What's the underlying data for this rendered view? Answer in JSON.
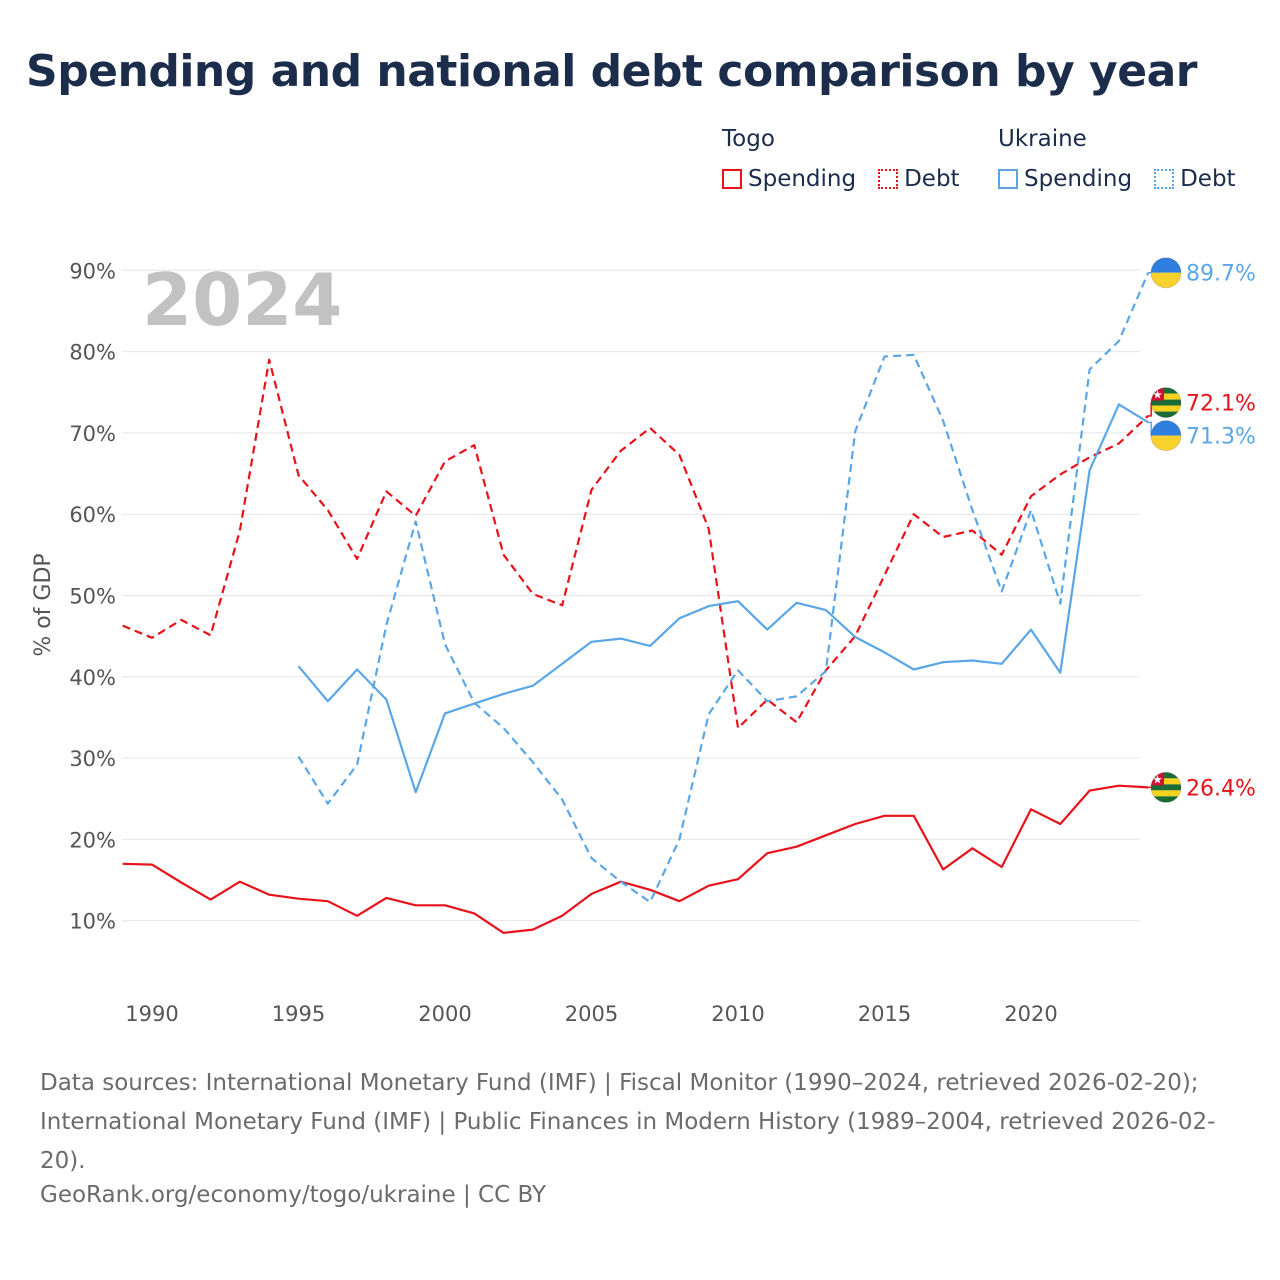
{
  "title": "Spending and national debt comparison by year",
  "legend": {
    "groups": [
      {
        "name": "Togo",
        "color": "#e8121a",
        "items": [
          {
            "label": "Spending",
            "style": "solid"
          },
          {
            "label": "Debt",
            "style": "dotted"
          }
        ]
      },
      {
        "name": "Ukraine",
        "color": "#5aa6e6",
        "items": [
          {
            "label": "Spending",
            "style": "solid"
          },
          {
            "label": "Debt",
            "style": "dotted"
          }
        ]
      }
    ]
  },
  "chart_data": {
    "type": "line",
    "year_label": "2024",
    "ylabel": "% of GDP",
    "xlim": [
      1989,
      2024
    ],
    "ylim": [
      3,
      95
    ],
    "x_ticks": [
      1990,
      1995,
      2000,
      2005,
      2010,
      2015,
      2020
    ],
    "y_ticks": [
      10,
      20,
      30,
      40,
      50,
      60,
      70,
      80,
      90
    ],
    "y_tick_labels": [
      "10%",
      "20%",
      "30%",
      "40%",
      "50%",
      "60%",
      "70%",
      "80%",
      "90%"
    ],
    "grid": true,
    "series": [
      {
        "name": "Togo Spending",
        "country": "Togo",
        "flag": "togo",
        "color": "#e8121a",
        "dash": "solid",
        "end_label": "26.4%",
        "points": [
          [
            1989,
            17.0
          ],
          [
            1990,
            16.9
          ],
          [
            1991,
            14.7
          ],
          [
            1992,
            12.6
          ],
          [
            1993,
            14.8
          ],
          [
            1994,
            13.2
          ],
          [
            1995,
            12.7
          ],
          [
            1996,
            12.4
          ],
          [
            1997,
            10.6
          ],
          [
            1998,
            12.8
          ],
          [
            1999,
            11.9
          ],
          [
            2000,
            11.9
          ],
          [
            2001,
            10.9
          ],
          [
            2002,
            8.5
          ],
          [
            2003,
            8.9
          ],
          [
            2004,
            10.6
          ],
          [
            2005,
            13.3
          ],
          [
            2006,
            14.8
          ],
          [
            2007,
            13.8
          ],
          [
            2008,
            12.4
          ],
          [
            2009,
            14.3
          ],
          [
            2010,
            15.1
          ],
          [
            2011,
            18.3
          ],
          [
            2012,
            19.1
          ],
          [
            2013,
            20.5
          ],
          [
            2014,
            21.9
          ],
          [
            2015,
            22.9
          ],
          [
            2016,
            22.9
          ],
          [
            2017,
            16.3
          ],
          [
            2018,
            18.9
          ],
          [
            2019,
            16.6
          ],
          [
            2020,
            23.7
          ],
          [
            2021,
            21.9
          ],
          [
            2022,
            26.0
          ],
          [
            2023,
            26.6
          ],
          [
            2024,
            26.4
          ]
        ]
      },
      {
        "name": "Togo Debt",
        "country": "Togo",
        "flag": "togo",
        "color": "#e8121a",
        "dash": "dashed",
        "end_label": "72.1%",
        "points": [
          [
            1989,
            46.3
          ],
          [
            1990,
            44.8
          ],
          [
            1991,
            47.0
          ],
          [
            1992,
            45.1
          ],
          [
            1993,
            58.0
          ],
          [
            1994,
            79.0
          ],
          [
            1995,
            64.8
          ],
          [
            1996,
            60.5
          ],
          [
            1997,
            54.5
          ],
          [
            1998,
            62.8
          ],
          [
            1999,
            59.8
          ],
          [
            2000,
            66.5
          ],
          [
            2001,
            68.5
          ],
          [
            2002,
            55.0
          ],
          [
            2003,
            50.2
          ],
          [
            2004,
            48.8
          ],
          [
            2005,
            63.0
          ],
          [
            2006,
            67.8
          ],
          [
            2007,
            70.6
          ],
          [
            2008,
            67.3
          ],
          [
            2009,
            58.2
          ],
          [
            2010,
            33.7
          ],
          [
            2011,
            37.2
          ],
          [
            2012,
            34.4
          ],
          [
            2013,
            40.8
          ],
          [
            2014,
            45.0
          ],
          [
            2015,
            52.5
          ],
          [
            2016,
            60.0
          ],
          [
            2017,
            57.2
          ],
          [
            2018,
            58.0
          ],
          [
            2019,
            55.0
          ],
          [
            2020,
            62.2
          ],
          [
            2021,
            64.9
          ],
          [
            2022,
            67.0
          ],
          [
            2023,
            68.7
          ],
          [
            2024,
            72.1
          ]
        ]
      },
      {
        "name": "Ukraine Spending",
        "country": "Ukraine",
        "flag": "ukraine",
        "color": "#5aa6e6",
        "dash": "solid",
        "end_label": "71.3%",
        "points": [
          [
            1995,
            41.3
          ],
          [
            1996,
            37.0
          ],
          [
            1997,
            40.9
          ],
          [
            1998,
            37.2
          ],
          [
            1999,
            25.8
          ],
          [
            2000,
            35.5
          ],
          [
            2001,
            36.7
          ],
          [
            2002,
            37.9
          ],
          [
            2003,
            38.9
          ],
          [
            2004,
            41.6
          ],
          [
            2005,
            44.3
          ],
          [
            2006,
            44.7
          ],
          [
            2007,
            43.8
          ],
          [
            2008,
            47.2
          ],
          [
            2009,
            48.7
          ],
          [
            2010,
            49.3
          ],
          [
            2011,
            45.8
          ],
          [
            2012,
            49.1
          ],
          [
            2013,
            48.2
          ],
          [
            2014,
            44.9
          ],
          [
            2015,
            43.0
          ],
          [
            2016,
            40.9
          ],
          [
            2017,
            41.8
          ],
          [
            2018,
            42.0
          ],
          [
            2019,
            41.6
          ],
          [
            2020,
            45.8
          ],
          [
            2021,
            40.5
          ],
          [
            2022,
            65.4
          ],
          [
            2023,
            73.5
          ],
          [
            2024,
            71.3
          ]
        ]
      },
      {
        "name": "Ukraine Debt",
        "country": "Ukraine",
        "flag": "ukraine",
        "color": "#5aa6e6",
        "dash": "dashed",
        "end_label": "89.7%",
        "points": [
          [
            1995,
            30.2
          ],
          [
            1996,
            24.4
          ],
          [
            1997,
            29.2
          ],
          [
            1998,
            46.4
          ],
          [
            1999,
            59.1
          ],
          [
            2000,
            44.0
          ],
          [
            2001,
            36.8
          ],
          [
            2002,
            33.7
          ],
          [
            2003,
            29.5
          ],
          [
            2004,
            24.9
          ],
          [
            2005,
            17.7
          ],
          [
            2006,
            14.8
          ],
          [
            2007,
            12.3
          ],
          [
            2008,
            20.0
          ],
          [
            2009,
            35.4
          ],
          [
            2010,
            40.8
          ],
          [
            2011,
            37.0
          ],
          [
            2012,
            37.6
          ],
          [
            2013,
            40.7
          ],
          [
            2014,
            70.2
          ],
          [
            2015,
            79.4
          ],
          [
            2016,
            79.6
          ],
          [
            2017,
            71.5
          ],
          [
            2018,
            60.5
          ],
          [
            2019,
            50.5
          ],
          [
            2020,
            60.5
          ],
          [
            2021,
            49.0
          ],
          [
            2022,
            77.8
          ],
          [
            2023,
            81.3
          ],
          [
            2024,
            89.7
          ]
        ]
      }
    ]
  },
  "footer": {
    "sources": "Data sources: International Monetary Fund (IMF) | Fiscal Monitor (1990–2024, retrieved 2026-02-20); International Monetary Fund (IMF) | Public Finances in Modern History (1989–2004, retrieved 2026-02-20).",
    "credit": "GeoRank.org/economy/togo/ukraine | CC BY"
  }
}
